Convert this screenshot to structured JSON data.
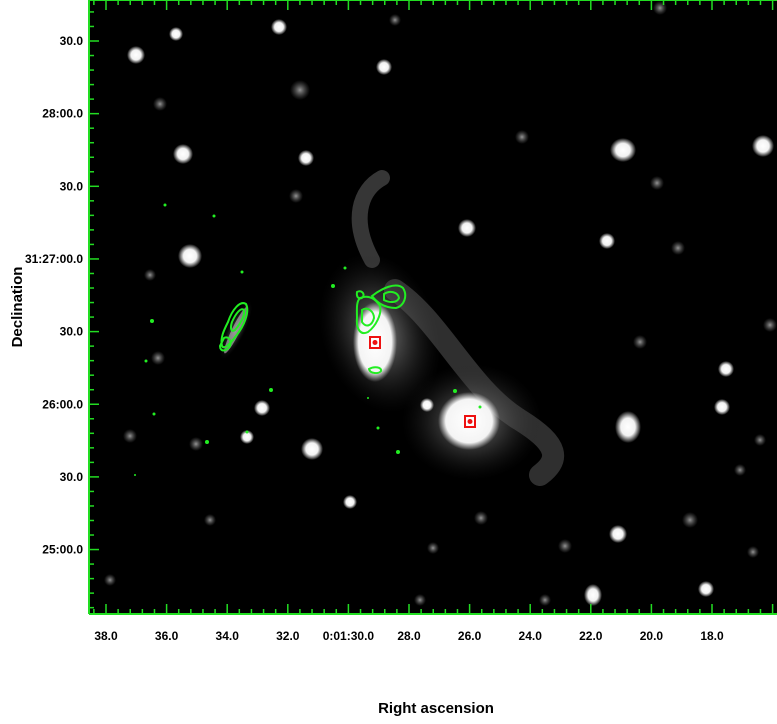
{
  "figure": {
    "xlabel": "Right ascension",
    "ylabel": "Declination",
    "x_ticks": [
      "38.0",
      "36.0",
      "34.0",
      "32.0",
      "0:01:30.0",
      "28.0",
      "26.0",
      "24.0",
      "22.0",
      "20.0",
      "18.0"
    ],
    "y_ticks": [
      "30.0",
      "28:00.0",
      "30.0",
      "31:27:00.0",
      "30.0",
      "26:00.0",
      "30.0",
      "25:00.0"
    ],
    "frame_color": "#22dd22",
    "contour_color": "#22ee22",
    "marker_color": "#ee1111",
    "sky_color": "#000000"
  }
}
